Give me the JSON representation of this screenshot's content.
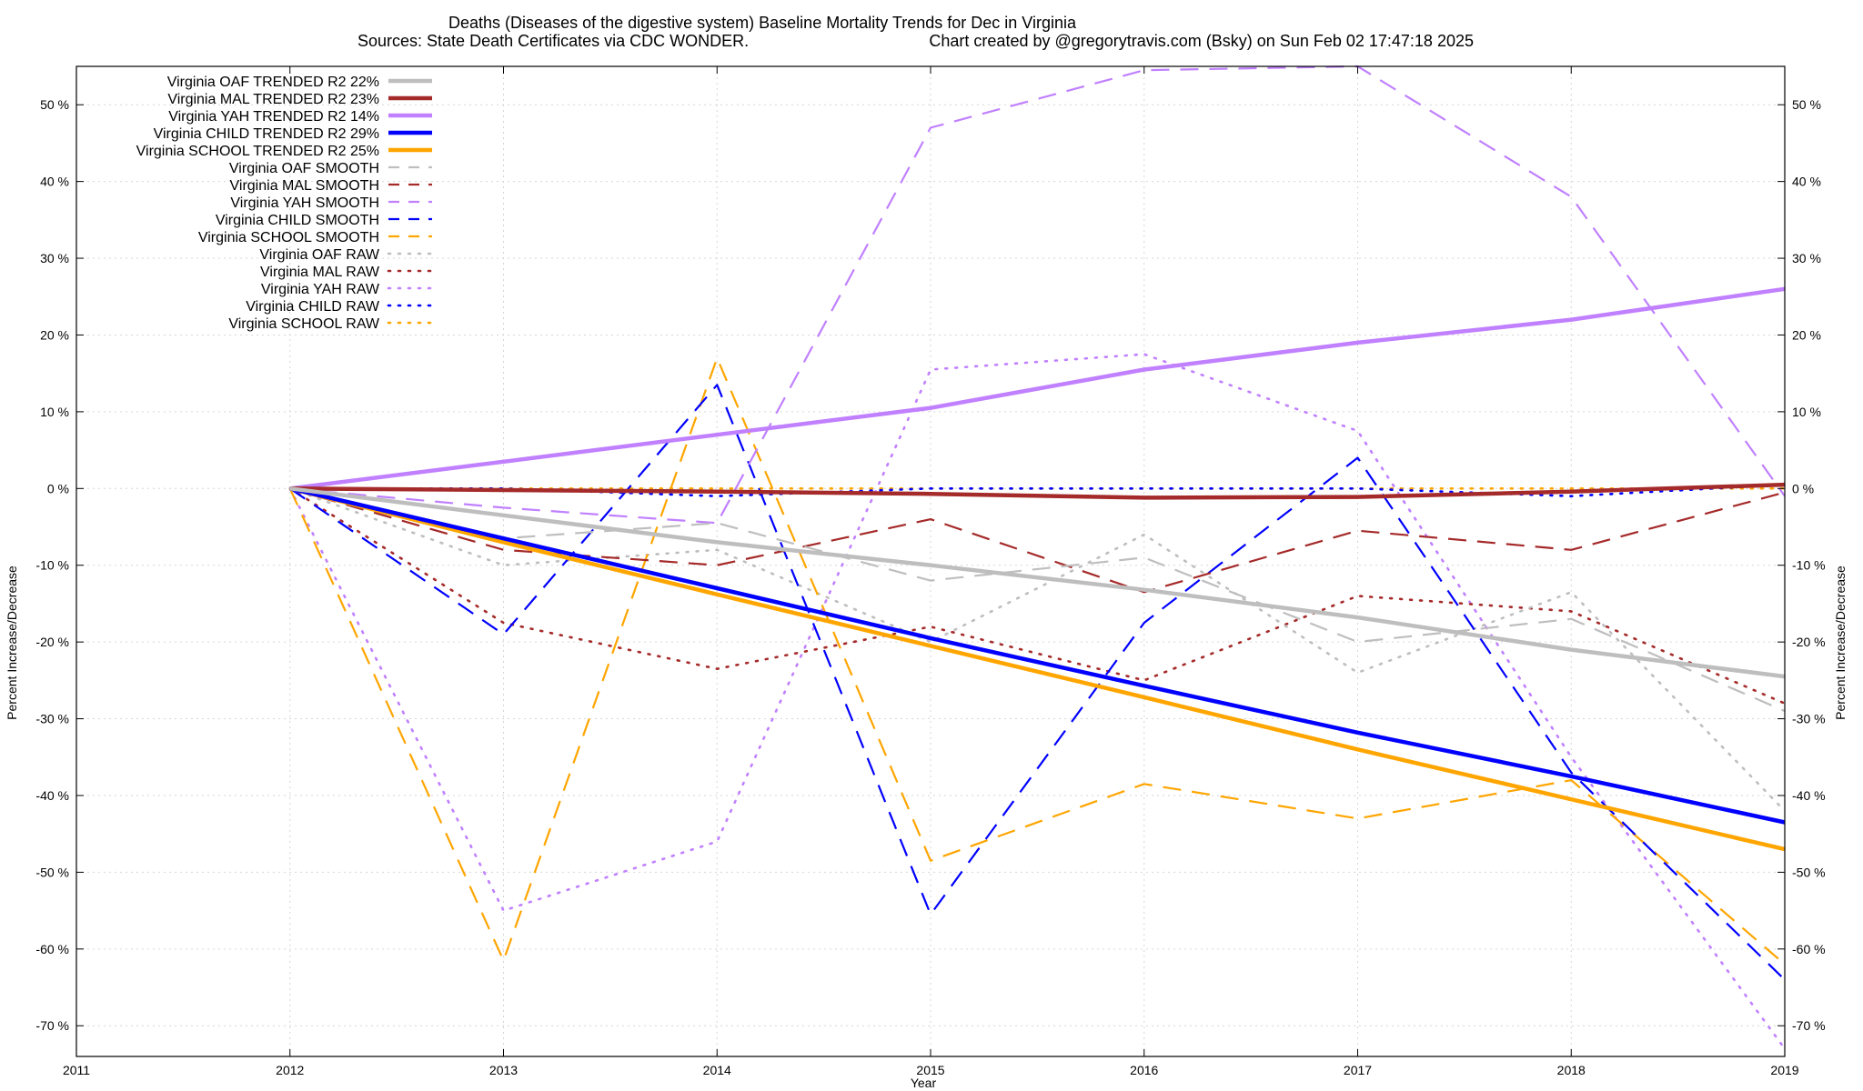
{
  "chart_data": {
    "type": "line",
    "title": "Deaths (Diseases of the digestive system)  Baseline Mortality Trends for Dec in Virginia",
    "subtitle_left": "Sources: State Death Certificates via CDC WONDER.",
    "subtitle_right": "Chart created by @gregorytravis.com (Bsky) on Sun Feb 02 17:47:18 2025",
    "xlabel": "Year",
    "ylabel": "Percent Increase/Decrease",
    "xlim": [
      2011,
      2019
    ],
    "ylim": [
      -74,
      55
    ],
    "x_ticks": [
      2011,
      2012,
      2013,
      2014,
      2015,
      2016,
      2017,
      2018,
      2019
    ],
    "y_ticks": [
      -70,
      -60,
      -50,
      -40,
      -30,
      -20,
      -10,
      0,
      10,
      20,
      30,
      40,
      50
    ],
    "y_tick_suffix": " %",
    "grid": true,
    "legend_position": "top-left",
    "x": [
      2012,
      2013,
      2014,
      2015,
      2016,
      2017,
      2018,
      2019
    ],
    "series": [
      {
        "name": "Virginia OAF TRENDED R2  22%",
        "color": "#bebebe",
        "style": "solid",
        "values": [
          0,
          -3.5,
          -7,
          -10,
          -13.2,
          -16.8,
          -21,
          -24.5
        ]
      },
      {
        "name": "Virginia MAL TRENDED R2  23%",
        "color": "#a52a2a",
        "style": "solid",
        "values": [
          0,
          -0.2,
          -0.4,
          -0.7,
          -1.2,
          -1.1,
          -0.4,
          0.5
        ]
      },
      {
        "name": "Virginia YAH TRENDED R2  14%",
        "color": "#c080ff",
        "style": "solid",
        "values": [
          0,
          3.5,
          7,
          10.5,
          15.5,
          19,
          22,
          26
        ]
      },
      {
        "name": "Virginia CHILD TRENDED R2  29%",
        "color": "#0000ff",
        "style": "solid",
        "values": [
          0,
          -6.5,
          -13,
          -19.5,
          -25.7,
          -31.8,
          -37.5,
          -43.5
        ]
      },
      {
        "name": "Virginia SCHOOL TRENDED R2  25%",
        "color": "#ffa500",
        "style": "solid",
        "values": [
          0,
          -7,
          -13.8,
          -20.5,
          -27.2,
          -34,
          -40.5,
          -47
        ]
      },
      {
        "name": "Virginia OAF SMOOTH",
        "color": "#bebebe",
        "style": "dashed",
        "values": [
          0,
          -6.5,
          -4.5,
          -12,
          -9,
          -20,
          -17,
          -29
        ]
      },
      {
        "name": "Virginia MAL SMOOTH",
        "color": "#a52a2a",
        "style": "dashed",
        "values": [
          0,
          -8,
          -10,
          -4,
          -13.5,
          -5.5,
          -8,
          -0.5
        ]
      },
      {
        "name": "Virginia YAH SMOOTH",
        "color": "#c080ff",
        "style": "dashed",
        "values": [
          0,
          -2.5,
          -4.5,
          47,
          54.5,
          55,
          38,
          -1
        ]
      },
      {
        "name": "Virginia CHILD SMOOTH",
        "color": "#0000ff",
        "style": "dashed",
        "values": [
          0,
          -19,
          13.5,
          -55.5,
          -17.5,
          4,
          -37,
          -64
        ]
      },
      {
        "name": "Virginia SCHOOL SMOOTH",
        "color": "#ffa500",
        "style": "dashed",
        "values": [
          0,
          -61.5,
          17,
          -48.5,
          -38.5,
          -43,
          -38,
          -62
        ]
      },
      {
        "name": "Virginia OAF RAW",
        "color": "#bebebe",
        "style": "dotted",
        "values": [
          0,
          -10,
          -8,
          -20,
          -6,
          -24,
          -13.5,
          -42
        ]
      },
      {
        "name": "Virginia MAL RAW",
        "color": "#a52a2a",
        "style": "dotted",
        "values": [
          0,
          -17.5,
          -23.5,
          -18,
          -25,
          -14,
          -16,
          -28
        ]
      },
      {
        "name": "Virginia YAH RAW",
        "color": "#c080ff",
        "style": "dotted",
        "values": [
          0,
          -55,
          -46,
          15.5,
          17.5,
          7.5,
          -35,
          -73
        ]
      },
      {
        "name": "Virginia CHILD RAW",
        "color": "#0000ff",
        "style": "dotted",
        "values": [
          0,
          0,
          -1,
          0,
          0,
          0,
          -1,
          0.5
        ]
      },
      {
        "name": "Virginia SCHOOL RAW",
        "color": "#ffa500",
        "style": "dotted",
        "values": [
          0,
          0,
          0,
          0,
          0,
          0,
          0,
          0
        ]
      }
    ]
  }
}
